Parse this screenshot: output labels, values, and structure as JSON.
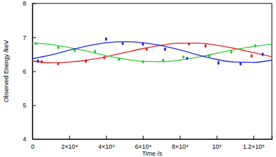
{
  "chart_data": {
    "type": "scatter",
    "x_label": "Time /s",
    "y_label": "Observed Energy /keV",
    "xlim": [
      0,
      130000
    ],
    "xticks": [
      0,
      {
        "value": 20000,
        "label": "2×10⁴"
      },
      {
        "value": 40000,
        "label": "4×10⁴"
      },
      {
        "value": 60000,
        "label": "6×10⁴"
      },
      {
        "value": 80000,
        "label": "8×10⁴"
      },
      {
        "value": 100000,
        "label": "10⁵"
      },
      {
        "value": 120000,
        "label": "1.2×10⁵"
      }
    ],
    "ylim": [
      4,
      8
    ],
    "yticks": [
      4,
      5,
      6,
      7,
      8
    ],
    "series": [
      {
        "type": "scatter",
        "color": "#e02020",
        "x": [
          5000,
          14000,
          29000,
          39000,
          62000,
          85000,
          94000,
          119000
        ],
        "values": [
          6.28,
          6.22,
          6.3,
          6.4,
          6.65,
          6.8,
          6.75,
          6.45
        ],
        "errors": [
          0.05,
          0.04,
          0.06,
          0.05,
          0.05,
          0.04,
          0.06,
          0.05
        ]
      },
      {
        "type": "line",
        "color": "#e02020",
        "x": [
          0,
          10000,
          20000,
          30000,
          40000,
          50000,
          60000,
          70000,
          80000,
          90000,
          100000,
          110000,
          120000,
          130000
        ],
        "values": [
          6.3,
          6.25,
          6.27,
          6.33,
          6.43,
          6.55,
          6.67,
          6.77,
          6.83,
          6.83,
          6.77,
          6.67,
          6.55,
          6.43
        ]
      },
      {
        "type": "scatter",
        "color": "#30c830",
        "x": [
          2000,
          14000,
          23000,
          34000,
          47000,
          60000,
          71000,
          82000,
          96000,
          108000,
          121000
        ],
        "values": [
          6.82,
          6.7,
          6.62,
          6.58,
          6.35,
          6.28,
          6.32,
          6.42,
          6.45,
          6.57,
          6.75
        ],
        "errors": [
          0.04,
          0.04,
          0.05,
          0.06,
          0.05,
          0.04,
          0.05,
          0.04,
          0.06,
          0.05,
          0.05
        ]
      },
      {
        "type": "line",
        "color": "#30c830",
        "x": [
          0,
          10000,
          20000,
          30000,
          40000,
          50000,
          60000,
          70000,
          80000,
          90000,
          100000,
          110000,
          120000,
          130000
        ],
        "values": [
          6.83,
          6.79,
          6.7,
          6.59,
          6.46,
          6.36,
          6.29,
          6.28,
          6.33,
          6.42,
          6.53,
          6.64,
          6.73,
          6.8
        ]
      },
      {
        "type": "scatter",
        "color": "#2020e0",
        "x": [
          3000,
          40000,
          49000,
          60000,
          72000,
          84000,
          101000,
          113000,
          125000
        ],
        "values": [
          6.3,
          6.95,
          6.82,
          6.8,
          6.65,
          6.38,
          6.25,
          6.22,
          6.5
        ],
        "errors": [
          0.05,
          0.05,
          0.04,
          0.05,
          0.05,
          0.04,
          0.06,
          0.05,
          0.05
        ]
      },
      {
        "type": "line",
        "color": "#2020e0",
        "x": [
          0,
          10000,
          20000,
          30000,
          40000,
          50000,
          60000,
          70000,
          80000,
          90000,
          100000,
          110000,
          120000,
          130000
        ],
        "values": [
          6.37,
          6.48,
          6.62,
          6.75,
          6.84,
          6.87,
          6.84,
          6.76,
          6.63,
          6.48,
          6.35,
          6.27,
          6.26,
          6.33
        ]
      }
    ]
  }
}
